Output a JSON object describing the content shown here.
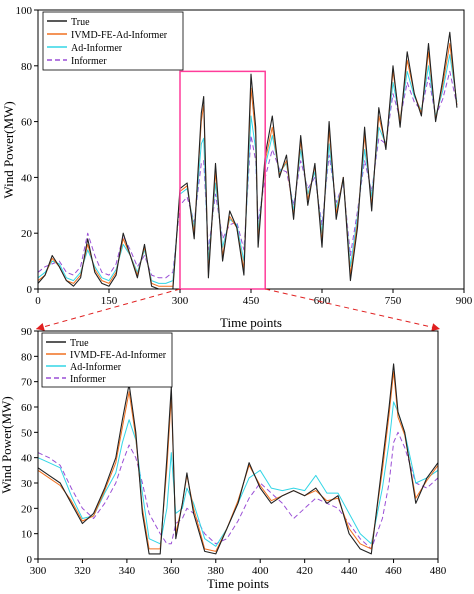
{
  "colors": {
    "True": "#222222",
    "IVMD-FE-Ad-Informer": "#f07020",
    "Ad-Informer": "#33d6e6",
    "Informer": "#9a4fd6",
    "highlight": "#ff3c9a",
    "connector": "#e02020"
  },
  "chart_data": [
    {
      "type": "line",
      "xlabel": "Time points",
      "ylabel": "Wind Power(MW)",
      "xlim": [
        0,
        900
      ],
      "ylim": [
        0,
        100
      ],
      "xticks": [
        0,
        150,
        300,
        450,
        600,
        750,
        900
      ],
      "yticks": [
        0,
        20,
        40,
        60,
        80,
        100
      ],
      "legend_position": "top-left",
      "highlight_range": {
        "x": [
          300,
          480
        ],
        "y": [
          0,
          78
        ]
      },
      "x": [
        0,
        15,
        30,
        45,
        60,
        75,
        90,
        105,
        120,
        135,
        150,
        165,
        180,
        195,
        210,
        225,
        240,
        255,
        270,
        285,
        300,
        315,
        330,
        345,
        350,
        360,
        375,
        390,
        405,
        420,
        435,
        450,
        460,
        465,
        480,
        495,
        510,
        525,
        540,
        555,
        570,
        585,
        600,
        615,
        630,
        645,
        660,
        675,
        690,
        705,
        720,
        735,
        750,
        765,
        780,
        795,
        810,
        825,
        840,
        855,
        870,
        885
      ],
      "series": [
        {
          "name": "True",
          "values": [
            2,
            5,
            12,
            8,
            3,
            1,
            4,
            18,
            6,
            2,
            1,
            5,
            20,
            12,
            4,
            16,
            1,
            0,
            0,
            0,
            36,
            38,
            18,
            63,
            69,
            4,
            45,
            10,
            28,
            22,
            5,
            77,
            58,
            15,
            48,
            62,
            40,
            48,
            25,
            55,
            30,
            45,
            15,
            60,
            25,
            40,
            3,
            22,
            58,
            28,
            65,
            50,
            80,
            58,
            85,
            70,
            62,
            88,
            60,
            75,
            92,
            65
          ]
        },
        {
          "name": "IVMD-FE-Ad-Informer",
          "values": [
            3,
            5,
            11,
            8,
            3,
            2,
            5,
            16,
            7,
            3,
            2,
            6,
            18,
            12,
            5,
            15,
            2,
            1,
            1,
            1,
            35,
            37,
            20,
            60,
            66,
            6,
            42,
            12,
            26,
            22,
            7,
            72,
            55,
            17,
            46,
            58,
            41,
            46,
            26,
            53,
            32,
            44,
            17,
            57,
            27,
            40,
            5,
            24,
            55,
            30,
            62,
            51,
            78,
            60,
            82,
            70,
            63,
            85,
            61,
            73,
            88,
            66
          ]
        },
        {
          "name": "Ad-Informer",
          "values": [
            4,
            6,
            10,
            9,
            4,
            3,
            6,
            14,
            8,
            4,
            3,
            7,
            16,
            12,
            6,
            14,
            3,
            2,
            2,
            3,
            34,
            36,
            22,
            52,
            54,
            10,
            38,
            15,
            25,
            23,
            10,
            62,
            50,
            20,
            44,
            55,
            42,
            45,
            28,
            50,
            34,
            42,
            20,
            52,
            29,
            39,
            8,
            26,
            50,
            33,
            58,
            52,
            74,
            61,
            78,
            69,
            64,
            80,
            62,
            71,
            84,
            67
          ]
        },
        {
          "name": "Informer",
          "values": [
            6,
            8,
            9,
            10,
            6,
            5,
            8,
            20,
            12,
            6,
            5,
            9,
            19,
            14,
            8,
            12,
            5,
            4,
            4,
            6,
            30,
            33,
            24,
            45,
            46,
            14,
            34,
            18,
            23,
            24,
            14,
            55,
            46,
            24,
            40,
            50,
            43,
            42,
            30,
            46,
            36,
            40,
            23,
            48,
            31,
            38,
            12,
            28,
            46,
            35,
            54,
            52,
            70,
            61,
            74,
            67,
            64,
            76,
            62,
            68,
            78,
            66
          ]
        }
      ]
    },
    {
      "type": "line",
      "xlabel": "Time points",
      "ylabel": "Wind Power(MW)",
      "xlim": [
        300,
        480
      ],
      "ylim": [
        0,
        90
      ],
      "xticks": [
        300,
        320,
        340,
        360,
        380,
        400,
        420,
        440,
        460,
        480
      ],
      "yticks": [
        0,
        10,
        20,
        30,
        40,
        50,
        60,
        70,
        80,
        90
      ],
      "legend_position": "top-left",
      "x": [
        300,
        305,
        310,
        315,
        320,
        325,
        330,
        335,
        338,
        341,
        344,
        347,
        350,
        355,
        358,
        360,
        362,
        365,
        367,
        370,
        375,
        380,
        385,
        390,
        395,
        400,
        405,
        410,
        415,
        420,
        425,
        430,
        435,
        440,
        445,
        450,
        455,
        458,
        460,
        462,
        465,
        470,
        475,
        480
      ],
      "series": [
        {
          "name": "True",
          "values": [
            36,
            33,
            30,
            22,
            14,
            18,
            28,
            40,
            55,
            69,
            50,
            18,
            2,
            2,
            40,
            68,
            8,
            22,
            34,
            18,
            3,
            2,
            12,
            22,
            38,
            28,
            22,
            25,
            27,
            25,
            28,
            22,
            25,
            10,
            4,
            2,
            38,
            60,
            77,
            58,
            50,
            22,
            32,
            38
          ]
        },
        {
          "name": "IVMD-FE-Ad-Informer",
          "values": [
            35,
            32,
            29,
            23,
            15,
            17,
            27,
            38,
            52,
            66,
            48,
            20,
            4,
            4,
            36,
            64,
            10,
            22,
            33,
            20,
            4,
            3,
            12,
            23,
            37,
            29,
            23,
            25,
            27,
            25,
            27,
            23,
            24,
            12,
            6,
            4,
            35,
            57,
            74,
            56,
            49,
            24,
            31,
            37
          ]
        },
        {
          "name": "Ad-Informer",
          "values": [
            40,
            38,
            36,
            25,
            16,
            17,
            26,
            34,
            46,
            55,
            47,
            26,
            8,
            6,
            20,
            42,
            18,
            20,
            28,
            22,
            8,
            5,
            12,
            22,
            32,
            35,
            28,
            27,
            28,
            27,
            33,
            26,
            26,
            18,
            10,
            6,
            28,
            46,
            62,
            58,
            50,
            30,
            32,
            35
          ]
        },
        {
          "name": "Informer",
          "values": [
            42,
            40,
            37,
            28,
            20,
            16,
            22,
            30,
            38,
            45,
            40,
            30,
            18,
            10,
            6,
            6,
            14,
            16,
            20,
            18,
            10,
            6,
            8,
            15,
            24,
            30,
            26,
            22,
            16,
            20,
            24,
            22,
            20,
            14,
            8,
            4,
            16,
            30,
            46,
            50,
            44,
            30,
            28,
            32
          ]
        }
      ]
    }
  ]
}
